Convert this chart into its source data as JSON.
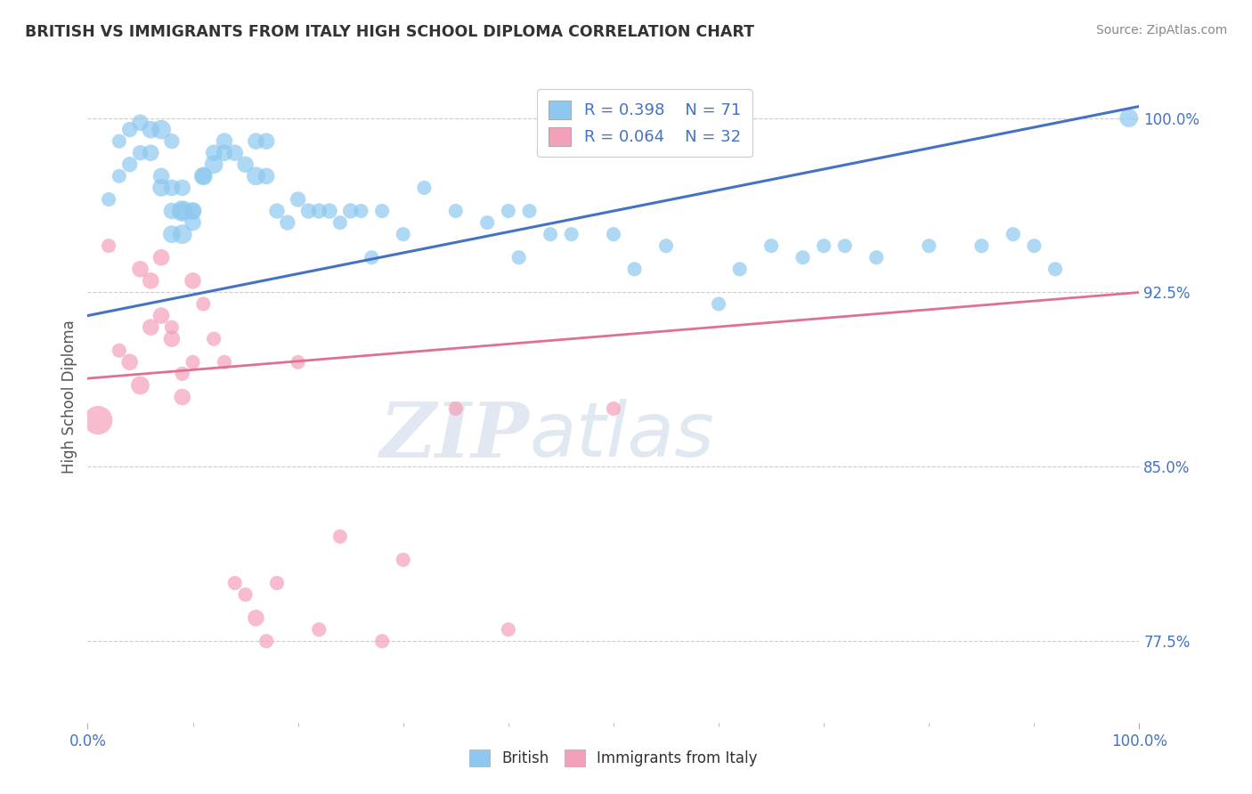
{
  "title": "BRITISH VS IMMIGRANTS FROM ITALY HIGH SCHOOL DIPLOMA CORRELATION CHART",
  "source": "Source: ZipAtlas.com",
  "ylabel": "High School Diploma",
  "british_color": "#8EC8F0",
  "italy_color": "#F4A0B8",
  "british_line_color": "#4472C4",
  "italy_line_color": "#E07090",
  "watermark_zip": "ZIP",
  "watermark_atlas": "atlas",
  "legend_british_r": "R = 0.398",
  "legend_british_n": "N = 71",
  "legend_italy_r": "R = 0.064",
  "legend_italy_n": "N = 32",
  "british_x": [
    0.02,
    0.03,
    0.03,
    0.04,
    0.04,
    0.05,
    0.05,
    0.06,
    0.06,
    0.07,
    0.07,
    0.07,
    0.08,
    0.08,
    0.08,
    0.08,
    0.09,
    0.09,
    0.09,
    0.09,
    0.1,
    0.1,
    0.1,
    0.11,
    0.11,
    0.12,
    0.12,
    0.13,
    0.13,
    0.14,
    0.15,
    0.16,
    0.16,
    0.17,
    0.17,
    0.18,
    0.19,
    0.2,
    0.21,
    0.22,
    0.23,
    0.24,
    0.25,
    0.26,
    0.27,
    0.28,
    0.3,
    0.32,
    0.35,
    0.38,
    0.4,
    0.41,
    0.42,
    0.44,
    0.46,
    0.5,
    0.52,
    0.55,
    0.6,
    0.62,
    0.65,
    0.68,
    0.7,
    0.72,
    0.75,
    0.8,
    0.85,
    0.88,
    0.9,
    0.92,
    0.99
  ],
  "british_y": [
    0.965,
    0.99,
    0.975,
    0.98,
    0.995,
    0.998,
    0.985,
    0.995,
    0.985,
    0.995,
    0.97,
    0.975,
    0.96,
    0.95,
    0.97,
    0.99,
    0.96,
    0.95,
    0.97,
    0.96,
    0.955,
    0.96,
    0.96,
    0.975,
    0.975,
    0.98,
    0.985,
    0.985,
    0.99,
    0.985,
    0.98,
    0.99,
    0.975,
    0.975,
    0.99,
    0.96,
    0.955,
    0.965,
    0.96,
    0.96,
    0.96,
    0.955,
    0.96,
    0.96,
    0.94,
    0.96,
    0.95,
    0.97,
    0.96,
    0.955,
    0.96,
    0.94,
    0.96,
    0.95,
    0.95,
    0.95,
    0.935,
    0.945,
    0.92,
    0.935,
    0.945,
    0.94,
    0.945,
    0.945,
    0.94,
    0.945,
    0.945,
    0.95,
    0.945,
    0.935,
    1.0
  ],
  "british_size": [
    30,
    30,
    30,
    35,
    35,
    40,
    35,
    45,
    40,
    55,
    45,
    40,
    40,
    45,
    40,
    35,
    65,
    55,
    40,
    50,
    40,
    40,
    45,
    40,
    50,
    50,
    40,
    40,
    40,
    40,
    40,
    40,
    50,
    40,
    40,
    35,
    35,
    35,
    35,
    35,
    35,
    30,
    35,
    30,
    30,
    30,
    30,
    30,
    30,
    30,
    30,
    30,
    30,
    30,
    30,
    30,
    30,
    30,
    30,
    30,
    30,
    30,
    30,
    30,
    30,
    30,
    30,
    30,
    30,
    30,
    50
  ],
  "italy_x": [
    0.01,
    0.02,
    0.03,
    0.04,
    0.05,
    0.05,
    0.06,
    0.06,
    0.07,
    0.07,
    0.08,
    0.08,
    0.09,
    0.09,
    0.1,
    0.1,
    0.11,
    0.12,
    0.13,
    0.14,
    0.15,
    0.16,
    0.17,
    0.18,
    0.2,
    0.22,
    0.24,
    0.28,
    0.3,
    0.35,
    0.4,
    0.5
  ],
  "italy_y": [
    0.87,
    0.945,
    0.9,
    0.895,
    0.885,
    0.935,
    0.91,
    0.93,
    0.915,
    0.94,
    0.91,
    0.905,
    0.89,
    0.88,
    0.895,
    0.93,
    0.92,
    0.905,
    0.895,
    0.8,
    0.795,
    0.785,
    0.775,
    0.8,
    0.895,
    0.78,
    0.82,
    0.775,
    0.81,
    0.875,
    0.78,
    0.875
  ],
  "italy_size": [
    120,
    30,
    30,
    40,
    50,
    40,
    40,
    40,
    40,
    40,
    30,
    40,
    30,
    40,
    30,
    40,
    30,
    30,
    30,
    30,
    30,
    40,
    30,
    30,
    30,
    30,
    30,
    30,
    30,
    30,
    30,
    30
  ],
  "yticks": [
    0.775,
    0.85,
    0.925,
    1.0
  ],
  "ytick_labels": [
    "77.5%",
    "85.0%",
    "92.5%",
    "100.0%"
  ],
  "xtick_labels": [
    "0.0%",
    "100.0%"
  ],
  "xlim": [
    0.0,
    1.0
  ],
  "ylim": [
    0.74,
    1.02
  ]
}
